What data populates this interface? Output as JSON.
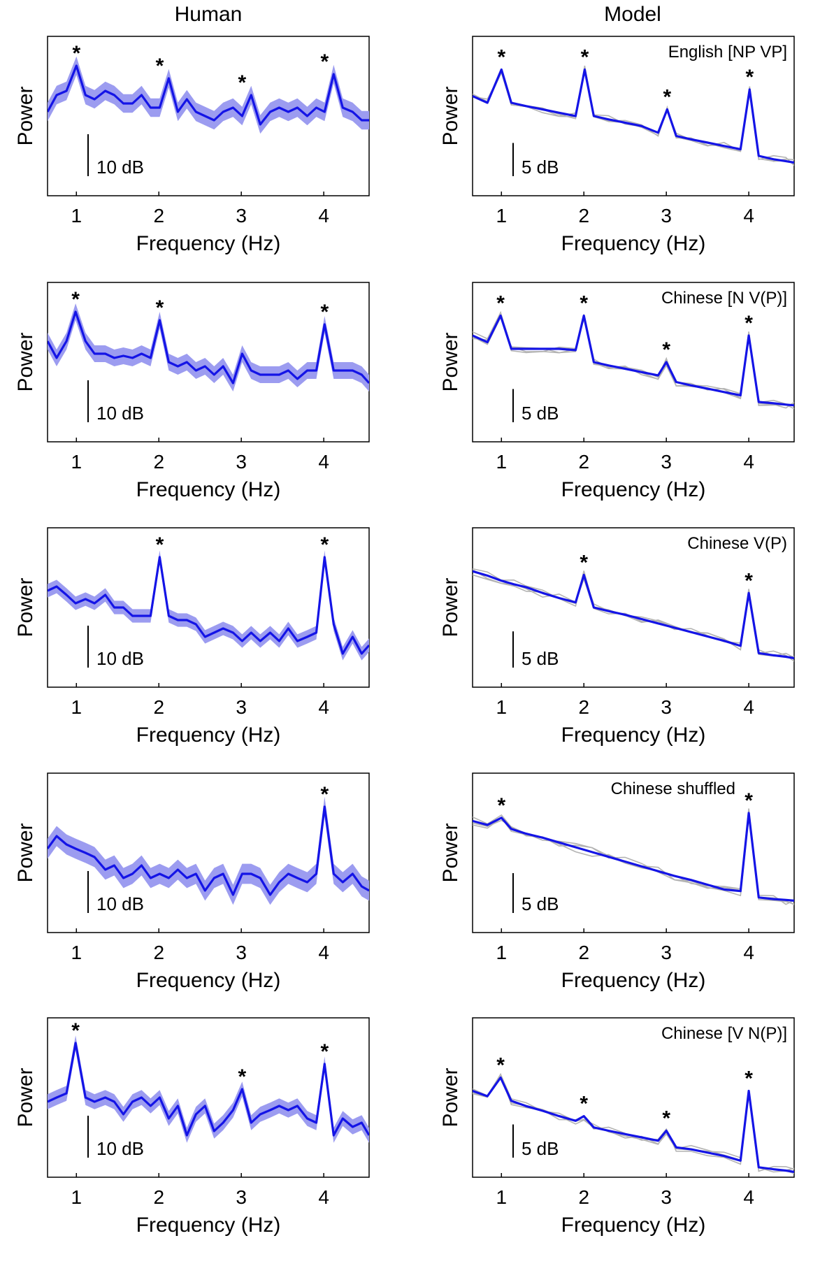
{
  "columns": {
    "left_title": "Human",
    "right_title": "Model"
  },
  "chart_data": [
    {
      "type": "line",
      "panel": "human-1",
      "title": "",
      "xlabel": "Frequency (Hz)",
      "ylabel": "Power",
      "xlim": [
        0.65,
        4.55
      ],
      "xticks": [
        1,
        2,
        3,
        4
      ],
      "ylim": [
        -30,
        8
      ],
      "scale_bar": "10 dB",
      "scale_db": 10,
      "band": 2.2,
      "gray_traces": 0,
      "x": [
        0.65,
        0.76,
        0.88,
        1.0,
        1.11,
        1.22,
        1.35,
        1.46,
        1.57,
        1.68,
        1.79,
        1.9,
        2.01,
        2.12,
        2.23,
        2.34,
        2.45,
        2.56,
        2.67,
        2.78,
        2.9,
        3.01,
        3.12,
        3.23,
        3.35,
        3.46,
        3.57,
        3.68,
        3.8,
        3.91,
        4.01,
        4.12,
        4.23,
        4.35,
        4.46,
        4.55
      ],
      "values": [
        -10,
        -6,
        -5,
        1,
        -6,
        -7,
        -5,
        -6,
        -8,
        -8,
        -6,
        -9,
        -9,
        -2,
        -10,
        -7,
        -10,
        -11,
        -12,
        -10,
        -9,
        -11,
        -6,
        -13,
        -10,
        -9,
        -10,
        -9,
        -11,
        -9,
        -10,
        -1,
        -9,
        -10,
        -12,
        -12
      ],
      "stars": [
        {
          "x": 1.0,
          "y": 1
        },
        {
          "x": 2.01,
          "y": -2
        },
        {
          "x": 3.01,
          "y": -6
        },
        {
          "x": 4.01,
          "y": -1
        }
      ]
    },
    {
      "type": "line",
      "panel": "model-1",
      "title": "English [NP VP]",
      "xlabel": "Frequency (Hz)",
      "ylabel": "Power",
      "xlim": [
        0.65,
        4.55
      ],
      "xticks": [
        1,
        2,
        3,
        4
      ],
      "ylim": [
        -16,
        8
      ],
      "scale_bar": "5 dB",
      "scale_db": 5,
      "band": 0.3,
      "gray_traces": 3,
      "x": [
        0.65,
        0.83,
        1.0,
        1.12,
        1.3,
        1.5,
        1.7,
        1.9,
        2.01,
        2.12,
        2.3,
        2.5,
        2.7,
        2.9,
        3.01,
        3.12,
        3.3,
        3.5,
        3.7,
        3.9,
        4.01,
        4.12,
        4.3,
        4.45,
        4.55
      ],
      "values": [
        -1,
        -2,
        3,
        -2,
        -2.5,
        -3,
        -3.5,
        -4,
        3,
        -4,
        -4.5,
        -5,
        -5.5,
        -6.5,
        -3,
        -7,
        -7.5,
        -8,
        -8.5,
        -9,
        0,
        -10,
        -10.5,
        -10.8,
        -11
      ],
      "stars": [
        {
          "x": 1.0,
          "y": 3
        },
        {
          "x": 2.01,
          "y": 3
        },
        {
          "x": 3.01,
          "y": -3
        },
        {
          "x": 4.01,
          "y": 0
        }
      ]
    },
    {
      "type": "line",
      "panel": "human-2",
      "title": "",
      "xlabel": "Frequency (Hz)",
      "ylabel": "Power",
      "xlim": [
        0.65,
        4.55
      ],
      "xticks": [
        1,
        2,
        3,
        4
      ],
      "ylim": [
        -30,
        8
      ],
      "scale_bar": "10 dB",
      "scale_db": 10,
      "band": 2.0,
      "gray_traces": 0,
      "x": [
        0.65,
        0.76,
        0.88,
        0.99,
        1.11,
        1.22,
        1.35,
        1.46,
        1.57,
        1.68,
        1.79,
        1.9,
        2.01,
        2.12,
        2.23,
        2.34,
        2.45,
        2.56,
        2.67,
        2.78,
        2.9,
        3.01,
        3.12,
        3.23,
        3.35,
        3.46,
        3.57,
        3.68,
        3.8,
        3.91,
        4.01,
        4.12,
        4.23,
        4.35,
        4.46,
        4.55
      ],
      "values": [
        -6,
        -10,
        -6,
        1,
        -6,
        -9,
        -9,
        -10,
        -9.5,
        -10,
        -9,
        -10,
        -1,
        -11,
        -12,
        -11,
        -13,
        -12,
        -14,
        -12,
        -16,
        -9,
        -13,
        -14,
        -14,
        -14,
        -13,
        -15,
        -13,
        -13,
        -2,
        -13,
        -13,
        -13,
        -14,
        -16
      ],
      "stars": [
        {
          "x": 0.99,
          "y": 1
        },
        {
          "x": 2.01,
          "y": -1
        },
        {
          "x": 4.01,
          "y": -2
        }
      ]
    },
    {
      "type": "line",
      "panel": "model-2",
      "title": "Chinese [N V(P)]",
      "xlabel": "Frequency (Hz)",
      "ylabel": "Power",
      "xlim": [
        0.65,
        4.55
      ],
      "xticks": [
        1,
        2,
        3,
        4
      ],
      "ylim": [
        -18,
        6
      ],
      "scale_bar": "5 dB",
      "scale_db": 5,
      "band": 0.3,
      "gray_traces": 3,
      "x": [
        0.65,
        0.83,
        0.99,
        1.12,
        1.3,
        1.5,
        1.7,
        1.9,
        2.0,
        2.12,
        2.3,
        2.5,
        2.7,
        2.9,
        3.0,
        3.12,
        3.3,
        3.5,
        3.7,
        3.9,
        4.0,
        4.12,
        4.3,
        4.45,
        4.55
      ],
      "values": [
        -2,
        -3,
        1,
        -4,
        -4,
        -4,
        -4,
        -4.2,
        1,
        -6,
        -6.5,
        -7,
        -7.5,
        -8,
        -6,
        -9,
        -9.5,
        -10,
        -10.5,
        -11,
        -2,
        -12,
        -12.2,
        -12.4,
        -12.5
      ],
      "stars": [
        {
          "x": 0.99,
          "y": 1
        },
        {
          "x": 2.0,
          "y": 1
        },
        {
          "x": 3.0,
          "y": -6
        },
        {
          "x": 4.0,
          "y": -2
        }
      ]
    },
    {
      "type": "line",
      "panel": "human-3",
      "title": "",
      "xlabel": "Frequency (Hz)",
      "ylabel": "Power",
      "xlim": [
        0.65,
        4.55
      ],
      "xticks": [
        1,
        2,
        3,
        4
      ],
      "ylim": [
        -30,
        8
      ],
      "scale_bar": "10 dB",
      "scale_db": 10,
      "band": 1.6,
      "gray_traces": 0,
      "x": [
        0.65,
        0.76,
        0.88,
        0.99,
        1.11,
        1.22,
        1.35,
        1.46,
        1.57,
        1.68,
        1.79,
        1.9,
        2.01,
        2.12,
        2.23,
        2.34,
        2.45,
        2.56,
        2.67,
        2.78,
        2.9,
        3.01,
        3.12,
        3.23,
        3.35,
        3.46,
        3.57,
        3.68,
        3.8,
        3.91,
        4.01,
        4.12,
        4.23,
        4.35,
        4.46,
        4.55
      ],
      "values": [
        -7,
        -6,
        -8,
        -10,
        -9,
        -10,
        -8,
        -11,
        -11,
        -13,
        -13,
        -13,
        1,
        -13,
        -14,
        -14,
        -15,
        -18,
        -17,
        -16,
        -17,
        -19,
        -17,
        -19,
        -17,
        -19,
        -16,
        -19,
        -18,
        -17,
        1,
        -15,
        -22,
        -18,
        -22,
        -20
      ],
      "stars": [
        {
          "x": 2.01,
          "y": 1
        },
        {
          "x": 4.01,
          "y": 1
        }
      ]
    },
    {
      "type": "line",
      "panel": "model-3",
      "title": "Chinese V(P)",
      "xlabel": "Frequency (Hz)",
      "ylabel": "Power",
      "xlim": [
        0.65,
        4.55
      ],
      "xticks": [
        1,
        2,
        3,
        4
      ],
      "ylim": [
        -16,
        6
      ],
      "scale_bar": "5 dB",
      "scale_db": 5,
      "band": 0.3,
      "gray_traces": 3,
      "x": [
        0.65,
        0.83,
        1.0,
        1.15,
        1.3,
        1.5,
        1.7,
        1.9,
        2.0,
        2.12,
        2.3,
        2.5,
        2.7,
        2.9,
        3.1,
        3.3,
        3.5,
        3.7,
        3.9,
        4.0,
        4.12,
        4.3,
        4.45,
        4.55
      ],
      "values": [
        0,
        -0.6,
        -1.3,
        -1.8,
        -2.2,
        -3,
        -3.7,
        -4.3,
        -0.5,
        -5,
        -5.5,
        -6,
        -6.6,
        -7.2,
        -7.8,
        -8.4,
        -9,
        -9.6,
        -10.3,
        -3,
        -11.3,
        -11.6,
        -11.8,
        -12
      ],
      "stars": [
        {
          "x": 2.0,
          "y": -0.5
        },
        {
          "x": 4.0,
          "y": -3
        }
      ]
    },
    {
      "type": "line",
      "panel": "human-4",
      "title": "",
      "xlabel": "Frequency (Hz)",
      "ylabel": "Power",
      "xlim": [
        0.65,
        4.55
      ],
      "xticks": [
        1,
        2,
        3,
        4
      ],
      "ylim": [
        -30,
        8
      ],
      "scale_bar": "10 dB",
      "scale_db": 10,
      "band": 2.4,
      "gray_traces": 0,
      "x": [
        0.65,
        0.76,
        0.88,
        0.99,
        1.11,
        1.22,
        1.35,
        1.46,
        1.57,
        1.68,
        1.79,
        1.9,
        2.01,
        2.12,
        2.23,
        2.34,
        2.45,
        2.56,
        2.67,
        2.78,
        2.9,
        3.01,
        3.12,
        3.23,
        3.35,
        3.46,
        3.57,
        3.68,
        3.8,
        3.91,
        4.01,
        4.12,
        4.23,
        4.35,
        4.46,
        4.55
      ],
      "values": [
        -10,
        -7,
        -9,
        -10,
        -11,
        -12,
        -15,
        -14,
        -17,
        -16,
        -14,
        -17,
        -16,
        -17,
        -15,
        -17,
        -16,
        -20,
        -17,
        -16,
        -21,
        -16,
        -16,
        -17,
        -21,
        -18,
        -16,
        -17,
        -18,
        -16,
        0,
        -16,
        -18,
        -16,
        -19,
        -20
      ],
      "stars": [
        {
          "x": 4.01,
          "y": 0
        }
      ]
    },
    {
      "type": "line",
      "panel": "model-4",
      "title": "Chinese shuffled",
      "xlabel": "Frequency (Hz)",
      "ylabel": "Power",
      "xlim": [
        0.65,
        4.55
      ],
      "xticks": [
        1,
        2,
        3,
        4
      ],
      "ylim": [
        -14,
        6
      ],
      "scale_bar": "5 dB",
      "scale_db": 5,
      "band": 0.3,
      "gray_traces": 3,
      "x": [
        0.65,
        0.83,
        1.0,
        1.12,
        1.3,
        1.5,
        1.7,
        1.9,
        2.1,
        2.3,
        2.5,
        2.7,
        2.9,
        3.1,
        3.3,
        3.5,
        3.7,
        3.9,
        4.0,
        4.12,
        4.3,
        4.45,
        4.55
      ],
      "values": [
        0,
        -0.5,
        0.4,
        -1,
        -1.6,
        -2.1,
        -2.7,
        -3.3,
        -3.9,
        -4.5,
        -5.1,
        -5.7,
        -6.3,
        -6.9,
        -7.4,
        -8,
        -8.6,
        -8.8,
        1,
        -9.6,
        -9.8,
        -9.9,
        -10
      ],
      "stars": [
        {
          "x": 1.0,
          "y": 0.4
        },
        {
          "x": 4.0,
          "y": 1
        }
      ]
    },
    {
      "type": "line",
      "panel": "human-5",
      "title": "",
      "xlabel": "Frequency (Hz)",
      "ylabel": "Power",
      "xlim": [
        0.65,
        4.55
      ],
      "xticks": [
        1,
        2,
        3,
        4
      ],
      "ylim": [
        -30,
        8
      ],
      "scale_bar": "10 dB",
      "scale_db": 10,
      "band": 1.8,
      "gray_traces": 0,
      "x": [
        0.65,
        0.76,
        0.88,
        0.99,
        1.11,
        1.22,
        1.35,
        1.46,
        1.57,
        1.68,
        1.79,
        1.9,
        2.01,
        2.12,
        2.23,
        2.34,
        2.45,
        2.56,
        2.67,
        2.78,
        2.9,
        3.01,
        3.12,
        3.23,
        3.35,
        3.46,
        3.57,
        3.68,
        3.8,
        3.91,
        4.01,
        4.12,
        4.23,
        4.35,
        4.46,
        4.55
      ],
      "values": [
        -12,
        -11,
        -10,
        2,
        -11,
        -12,
        -11,
        -12,
        -15,
        -12,
        -11,
        -13,
        -11,
        -16,
        -13,
        -20,
        -15,
        -13,
        -19,
        -17,
        -14,
        -9,
        -17,
        -15,
        -14,
        -13,
        -14,
        -13,
        -16,
        -17,
        -3,
        -20,
        -16,
        -18,
        -17,
        -20
      ],
      "stars": [
        {
          "x": 0.99,
          "y": 2
        },
        {
          "x": 3.01,
          "y": -9
        },
        {
          "x": 4.01,
          "y": -3
        }
      ]
    },
    {
      "type": "line",
      "panel": "model-5",
      "title": "Chinese [V N(P)]",
      "xlabel": "Frequency (Hz)",
      "ylabel": "Power",
      "xlim": [
        0.65,
        4.55
      ],
      "xticks": [
        1,
        2,
        3,
        4
      ],
      "ylim": [
        -18,
        6
      ],
      "scale_bar": "5 dB",
      "scale_db": 5,
      "band": 0.3,
      "gray_traces": 3,
      "x": [
        0.65,
        0.83,
        0.99,
        1.12,
        1.3,
        1.5,
        1.7,
        1.9,
        2.0,
        2.12,
        2.3,
        2.5,
        2.7,
        2.9,
        3.0,
        3.12,
        3.3,
        3.5,
        3.7,
        3.9,
        4.0,
        4.12,
        4.3,
        4.45,
        4.55
      ],
      "values": [
        -5,
        -5.8,
        -3,
        -6.5,
        -7.3,
        -8,
        -8.8,
        -9.5,
        -8.8,
        -10.5,
        -11,
        -11.5,
        -12,
        -12.5,
        -11,
        -13.5,
        -13.8,
        -14.3,
        -14.8,
        -15.5,
        -5,
        -16.5,
        -16.8,
        -17,
        -17.2
      ],
      "stars": [
        {
          "x": 0.99,
          "y": -3
        },
        {
          "x": 2.0,
          "y": -8.8
        },
        {
          "x": 3.0,
          "y": -11
        },
        {
          "x": 4.0,
          "y": -5
        }
      ]
    }
  ]
}
